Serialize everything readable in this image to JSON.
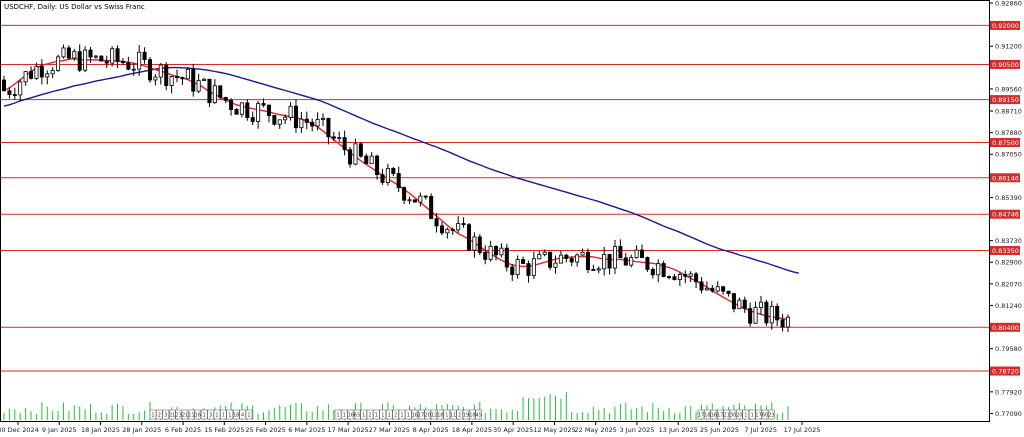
{
  "chart_data": {
    "type": "candlestick",
    "title": "USDCHF, Daily: US Dollar vs Swiss Franc",
    "ylim": [
      0.768,
      0.929
    ],
    "y_ticks": [
      "0.92860",
      "0.92000",
      "0.91200",
      "0.90500",
      "0.89560",
      "0.89150",
      "0.88710",
      "0.87880",
      "0.87500",
      "0.87050",
      "0.86146",
      "0.85390",
      "0.84746",
      "0.83730",
      "0.83350",
      "0.82900",
      "0.82070",
      "0.81240",
      "0.80400",
      "0.79580",
      "0.78720",
      "0.77920",
      "0.77090"
    ],
    "highlight_levels": [
      "0.92000",
      "0.90500",
      "0.89150",
      "0.87500",
      "0.86146",
      "0.84746",
      "0.83350",
      "0.80400",
      "0.78720"
    ],
    "x_ticks": [
      "30 Dec 2024",
      "9 Jan 2025",
      "18 Jan 2025",
      "28 Jan 2025",
      "6 Feb 2025",
      "15 Feb 2025",
      "25 Feb 2025",
      "6 Mar 2025",
      "17 Mar 2025",
      "27 Mar 2025",
      "8 Apr 2025",
      "18 Apr 2025",
      "30 Apr 2025",
      "12 May 2025",
      "22 May 2025",
      "3 Jun 2025",
      "13 Jun 2025",
      "25 Jun 2025",
      "7 Jul 2025",
      "17 Jul 2025"
    ],
    "event_labels": [
      "1",
      "2",
      "3",
      "21",
      "23",
      "21",
      "11",
      "16",
      "1",
      "3",
      "1",
      "1",
      "1",
      "18",
      "4",
      "1",
      "1",
      "1",
      "16",
      "65",
      "1",
      "2",
      "1",
      "1",
      "1",
      "2",
      "1",
      "1",
      "16",
      "17",
      "20",
      "12",
      "18",
      "1",
      "11",
      "2",
      "19",
      "18",
      "45",
      "17",
      "18",
      "16",
      "17",
      "21",
      "30",
      "20",
      "1",
      "1",
      "17",
      "60",
      "23"
    ],
    "ma_fast": [
      0.895,
      0.896,
      0.8975,
      0.8992,
      0.9007,
      0.9023,
      0.9036,
      0.9047,
      0.9052,
      0.9058,
      0.9062,
      0.9065,
      0.907,
      0.9072,
      0.907,
      0.9067,
      0.9068,
      0.9067,
      0.9068,
      0.9064,
      0.9065,
      0.9062,
      0.9062,
      0.9058,
      0.9055,
      0.905,
      0.9044,
      0.9038,
      0.903,
      0.9024,
      0.9018,
      0.901,
      0.9004,
      0.8998,
      0.8992,
      0.8982,
      0.8972,
      0.896,
      0.8945,
      0.8935,
      0.8924,
      0.8913,
      0.8904,
      0.8895,
      0.889,
      0.8885,
      0.888,
      0.8876,
      0.8872,
      0.8868,
      0.8862,
      0.8857,
      0.8853,
      0.8849,
      0.8845,
      0.884,
      0.8832,
      0.8822,
      0.881,
      0.8794,
      0.8778,
      0.8761,
      0.8744,
      0.8728,
      0.8712,
      0.8696,
      0.868,
      0.8666,
      0.8652,
      0.8638,
      0.8623,
      0.861,
      0.8598,
      0.8585,
      0.857,
      0.8555,
      0.8538,
      0.852,
      0.8503,
      0.8485,
      0.8467,
      0.845,
      0.8432,
      0.8415,
      0.84,
      0.839,
      0.8378,
      0.8365,
      0.835,
      0.8335,
      0.8322,
      0.831,
      0.8298,
      0.8288,
      0.828,
      0.8276,
      0.8274,
      0.8275,
      0.8278,
      0.8284,
      0.829,
      0.8296,
      0.8302,
      0.8306,
      0.8308,
      0.831,
      0.8311,
      0.8312,
      0.8312,
      0.831,
      0.8306,
      0.8303,
      0.8301,
      0.8301,
      0.83,
      0.8298,
      0.8295,
      0.8292,
      0.829,
      0.8288,
      0.8286,
      0.8282,
      0.8276,
      0.827,
      0.8262,
      0.8252,
      0.824,
      0.8228,
      0.8218,
      0.8208,
      0.8194,
      0.818,
      0.8168,
      0.8156,
      0.8144,
      0.8133,
      0.8122,
      0.8112,
      0.8104,
      0.8096,
      0.809,
      0.8084,
      0.808,
      0.8077,
      0.8074,
      0.807
    ],
    "ma_slow": [
      0.889,
      0.8895,
      0.8902,
      0.891,
      0.8916,
      0.8922,
      0.8928,
      0.8934,
      0.894,
      0.8946,
      0.8951,
      0.8956,
      0.8962,
      0.8968,
      0.8972,
      0.8976,
      0.8981,
      0.8986,
      0.899,
      0.8994,
      0.8998,
      0.9002,
      0.9007,
      0.9012,
      0.9016,
      0.902,
      0.9024,
      0.9028,
      0.9032,
      0.9035,
      0.9037,
      0.9038,
      0.9038,
      0.9037,
      0.9036,
      0.9034,
      0.9032,
      0.903,
      0.9027,
      0.9023,
      0.9019,
      0.9015,
      0.901,
      0.9004,
      0.8998,
      0.8992,
      0.8986,
      0.898,
      0.8974,
      0.8968,
      0.8962,
      0.8956,
      0.895,
      0.8944,
      0.8938,
      0.8932,
      0.8926,
      0.892,
      0.8914,
      0.8906,
      0.8898,
      0.8889,
      0.888,
      0.8871,
      0.8862,
      0.8853,
      0.8844,
      0.8835,
      0.8826,
      0.8818,
      0.881,
      0.8802,
      0.8795,
      0.8787,
      0.8779,
      0.8771,
      0.8763,
      0.8756,
      0.8748,
      0.874,
      0.8733,
      0.8724,
      0.8716,
      0.8707,
      0.8698,
      0.8689,
      0.868,
      0.8672,
      0.8664,
      0.8656,
      0.8648,
      0.8641,
      0.8634,
      0.8627,
      0.862,
      0.8613,
      0.8607,
      0.8601,
      0.8595,
      0.8589,
      0.8583,
      0.8577,
      0.8571,
      0.8565,
      0.8559,
      0.8553,
      0.8547,
      0.8541,
      0.8535,
      0.8529,
      0.8523,
      0.8516,
      0.8509,
      0.8502,
      0.8495,
      0.8488,
      0.8481,
      0.8473,
      0.8465,
      0.8456,
      0.8447,
      0.8438,
      0.8429,
      0.8421,
      0.8413,
      0.8405,
      0.8396,
      0.8387,
      0.8378,
      0.8369,
      0.836,
      0.8352,
      0.8344,
      0.8337,
      0.8331,
      0.8325,
      0.8318,
      0.8312,
      0.8306,
      0.8299,
      0.8293,
      0.8287,
      0.828,
      0.8273,
      0.8266,
      0.8259,
      0.8253,
      0.8248
    ]
  },
  "colors": {
    "up": "#ffffff",
    "down": "#000000",
    "level_line": "#d42c2c",
    "ma_fast": "#e32626",
    "ma_slow": "#1a1a8c",
    "volume": "#22c33a",
    "grid_border": "#000000"
  }
}
